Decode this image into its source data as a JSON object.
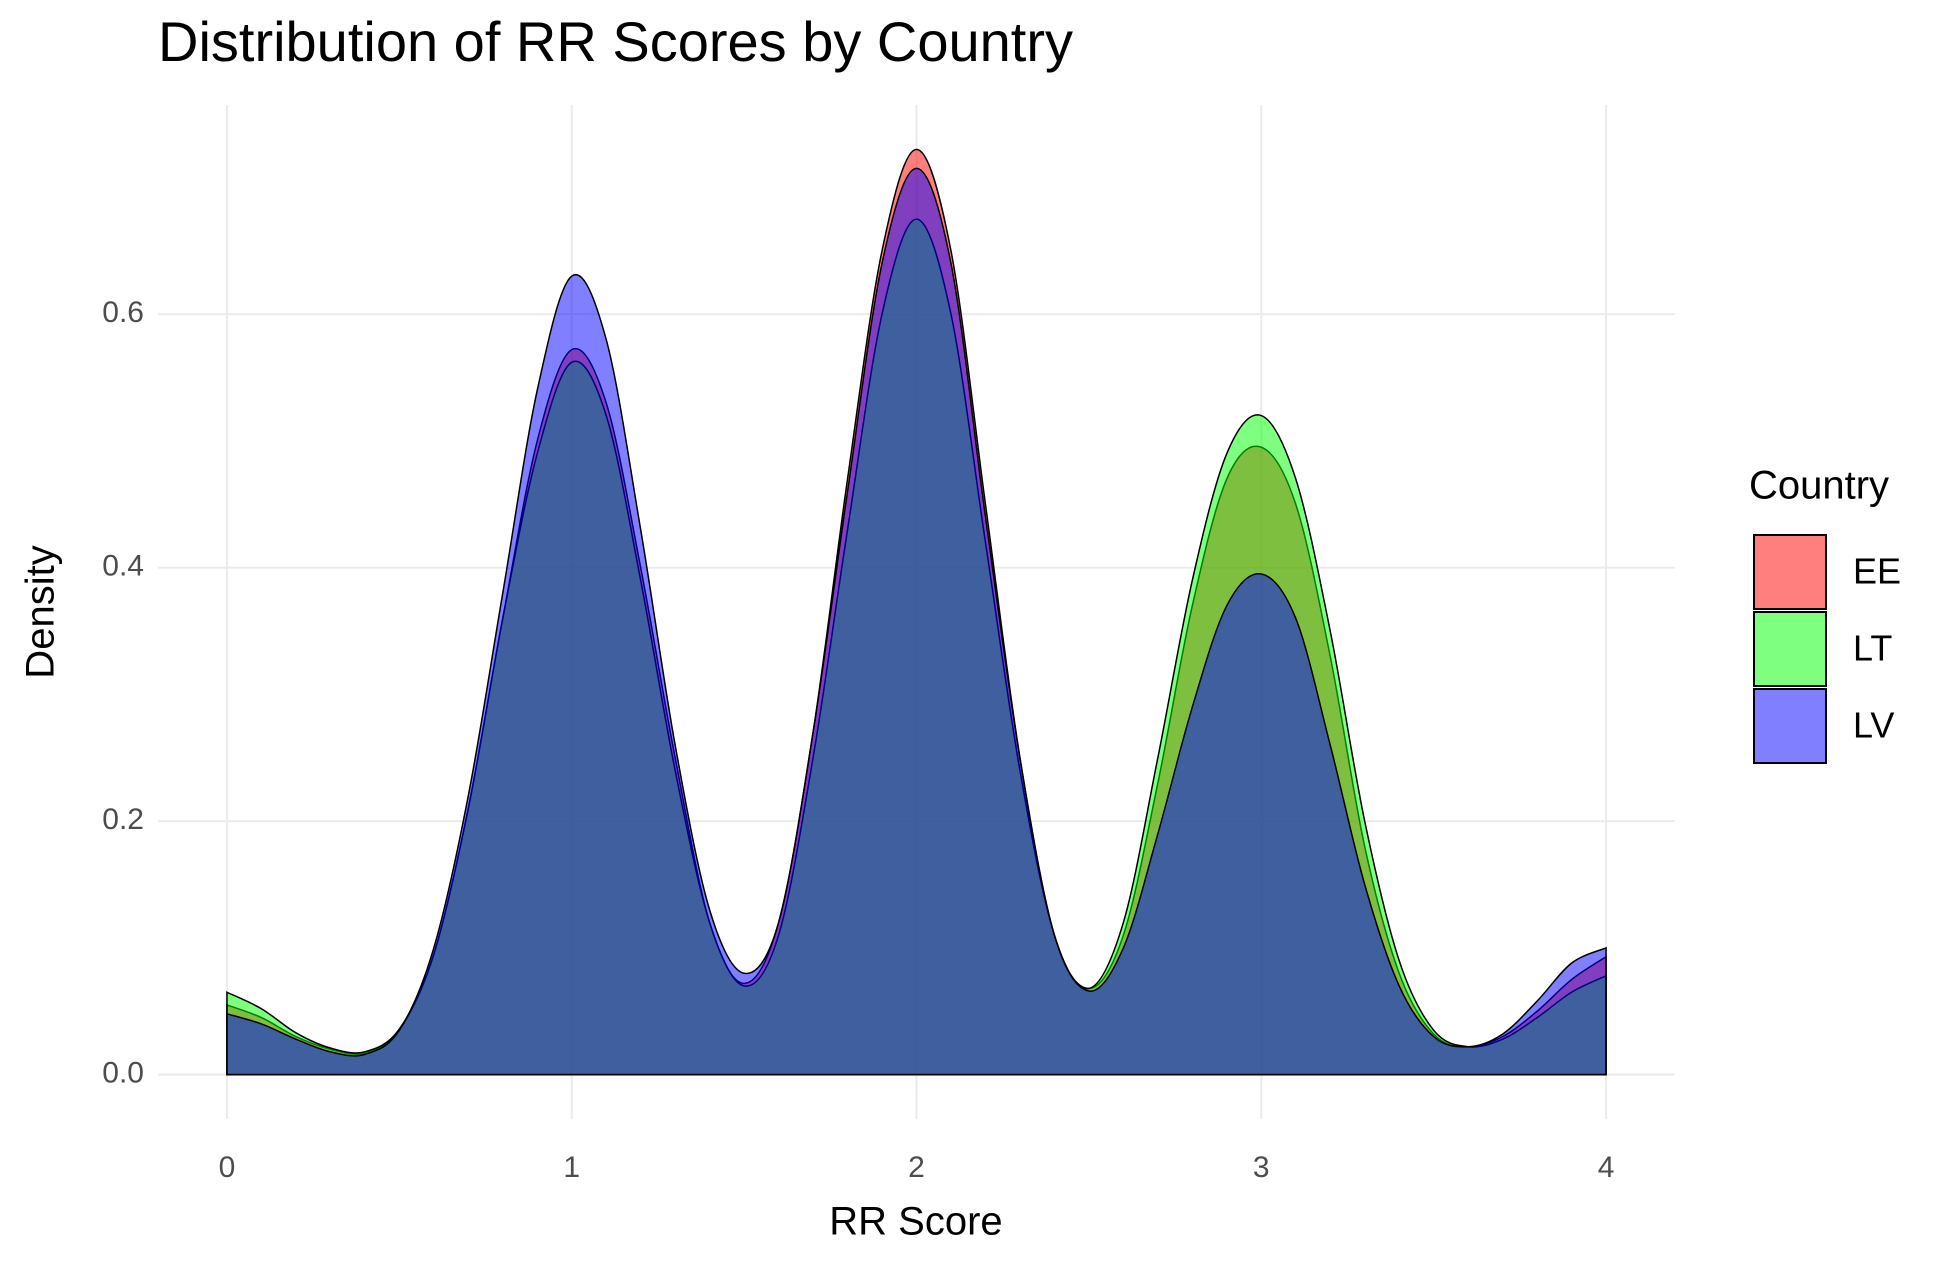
{
  "chart_data": {
    "type": "density",
    "title": "Distribution of RR Scores by Country",
    "x_label": "RR Score",
    "y_label": "Density",
    "legend_title": "Country",
    "legend_position": "right",
    "alpha": 0.5,
    "grid": true,
    "x": [
      0,
      0.1,
      0.2,
      0.3,
      0.4,
      0.5,
      0.6,
      0.7,
      0.8,
      0.9,
      1,
      1.1,
      1.2,
      1.3,
      1.4,
      1.5,
      1.6,
      1.7,
      1.8,
      1.9,
      2,
      2.1,
      2.2,
      2.3,
      2.4,
      2.5,
      2.6,
      2.7,
      2.8,
      2.9,
      3,
      3.1,
      3.2,
      3.3,
      3.4,
      3.5,
      3.6,
      3.7,
      3.8,
      3.9,
      4
    ],
    "series": [
      {
        "name": "EE",
        "color": "#FF0000",
        "values": [
          0.055,
          0.045,
          0.03,
          0.02,
          0.017,
          0.035,
          0.095,
          0.21,
          0.36,
          0.5,
          0.572,
          0.53,
          0.4,
          0.25,
          0.12,
          0.072,
          0.12,
          0.27,
          0.47,
          0.65,
          0.73,
          0.65,
          0.45,
          0.25,
          0.11,
          0.068,
          0.11,
          0.23,
          0.37,
          0.47,
          0.495,
          0.45,
          0.33,
          0.18,
          0.08,
          0.032,
          0.022,
          0.03,
          0.05,
          0.075,
          0.093
        ]
      },
      {
        "name": "LT",
        "color": "#00FF00",
        "values": [
          0.065,
          0.052,
          0.033,
          0.021,
          0.018,
          0.036,
          0.095,
          0.21,
          0.36,
          0.49,
          0.562,
          0.52,
          0.39,
          0.24,
          0.12,
          0.07,
          0.11,
          0.25,
          0.43,
          0.6,
          0.675,
          0.6,
          0.42,
          0.24,
          0.11,
          0.068,
          0.12,
          0.25,
          0.39,
          0.49,
          0.52,
          0.47,
          0.35,
          0.2,
          0.09,
          0.035,
          0.022,
          0.028,
          0.045,
          0.065,
          0.078
        ]
      },
      {
        "name": "LV",
        "color": "#0000FF",
        "values": [
          0.048,
          0.04,
          0.028,
          0.018,
          0.016,
          0.035,
          0.1,
          0.22,
          0.38,
          0.54,
          0.63,
          0.58,
          0.43,
          0.26,
          0.13,
          0.08,
          0.12,
          0.27,
          0.46,
          0.64,
          0.715,
          0.64,
          0.44,
          0.25,
          0.11,
          0.066,
          0.1,
          0.19,
          0.29,
          0.37,
          0.395,
          0.36,
          0.26,
          0.15,
          0.07,
          0.03,
          0.022,
          0.032,
          0.058,
          0.088,
          0.1
        ]
      }
    ],
    "xlim": [
      -0.2,
      4.2
    ],
    "xticks": [
      0,
      1,
      2,
      3,
      4
    ],
    "ylim": [
      -0.035,
      0.765
    ],
    "yticks": [
      {
        "value": 0,
        "label": "0.0"
      },
      {
        "value": 0.2,
        "label": "0.2"
      },
      {
        "value": 0.4,
        "label": "0.4"
      },
      {
        "value": 0.6,
        "label": "0.6"
      }
    ]
  }
}
